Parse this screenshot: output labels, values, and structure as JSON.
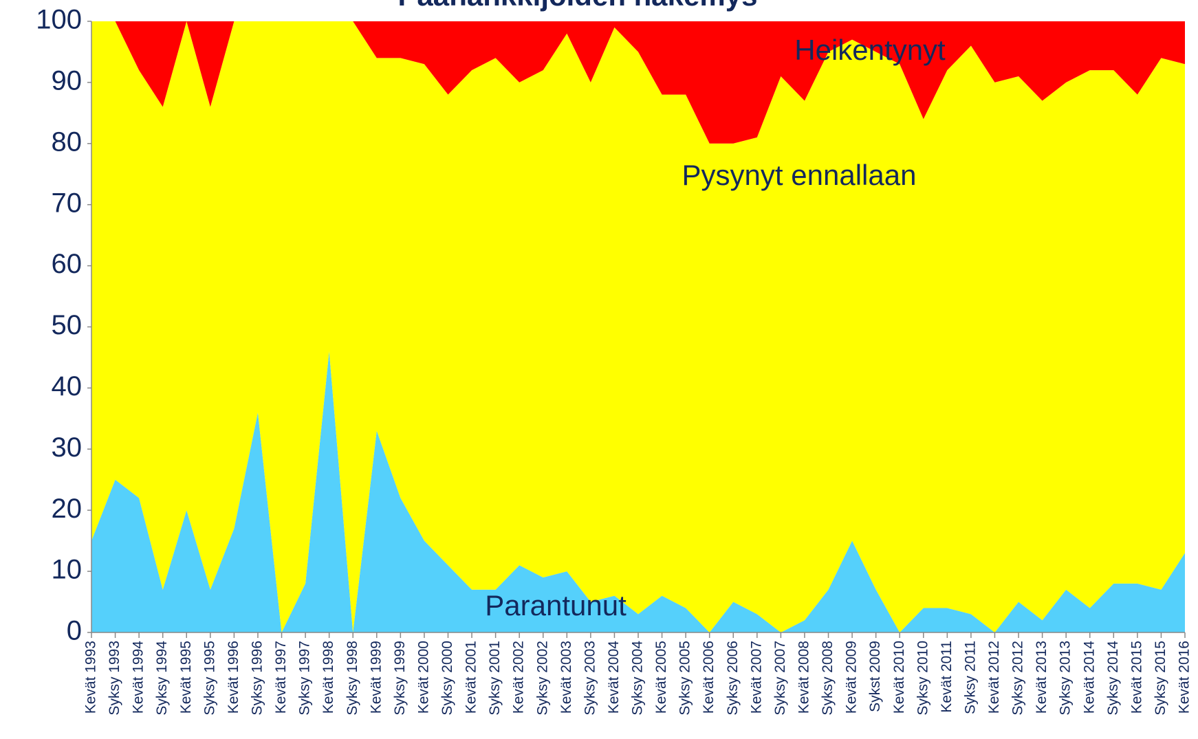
{
  "chart_data": {
    "type": "stacked_area",
    "title": "Päähankkijoiden näkemys",
    "categories": [
      "Kevät 1993",
      "Syksy 1993",
      "Kevät 1994",
      "Syksy 1994",
      "Kevät 1995",
      "Syksy 1995",
      "Kevät 1996",
      "Syksy 1996",
      "Kevät 1997",
      "Syksy 1997",
      "Kevät 1998",
      "Syksy 1998",
      "Kevät 1999",
      "Syksy 1999",
      "Kevät 2000",
      "Syksy 2000",
      "Kevät 2001",
      "Syksy 2001",
      "Kevät 2002",
      "Syksy 2002",
      "Kevät 2003",
      "Syksy 2003",
      "Kevät 2004",
      "Syksy 2004",
      "Kevät 2005",
      "Syksy 2005",
      "Kevät 2006",
      "Syksy 2006",
      "Kevät 2007",
      "Syksy 2007",
      "Kevät 2008",
      "Syksy 2008",
      "Kevät 2009",
      "Sykst 2009",
      "Kevät 2010",
      "Syksy 2010",
      "Kevät 2011",
      "Syksy 2011",
      "Kevät 2012",
      "Syksy 2012",
      "Kevät 2013",
      "Syksy 2013",
      "Kevät 2014",
      "Syksy 2014",
      "Kevät 2015",
      "Syksy 2015",
      "Kevät 2016"
    ],
    "series": [
      {
        "name": "Parantunut",
        "color": "#55d0fb",
        "values": [
          15,
          25,
          22,
          7,
          20,
          7,
          17,
          36,
          0,
          8,
          46,
          0,
          33,
          22,
          15,
          11,
          7,
          7,
          11,
          9,
          10,
          5,
          6,
          3,
          6,
          4,
          0,
          5,
          3,
          0,
          2,
          7,
          15,
          7,
          0,
          4,
          4,
          3,
          0,
          5,
          2,
          7,
          4,
          8,
          8,
          7,
          13
        ]
      },
      {
        "name": "Pysynyt ennallaan",
        "color": "#ffff00",
        "values": [
          85,
          75,
          70,
          79,
          80,
          79,
          83,
          64,
          100,
          92,
          54,
          100,
          61,
          72,
          78,
          77,
          85,
          87,
          79,
          83,
          88,
          85,
          93,
          92,
          82,
          84,
          80,
          75,
          78,
          91,
          85,
          88,
          82,
          88,
          93,
          80,
          88,
          93,
          90,
          86,
          85,
          83,
          88,
          84,
          80,
          87,
          80
        ]
      },
      {
        "name": "Heikentynyt",
        "color": "#ff0000",
        "values": [
          0,
          0,
          8,
          14,
          0,
          14,
          0,
          0,
          0,
          0,
          0,
          0,
          6,
          6,
          7,
          12,
          8,
          6,
          10,
          8,
          2,
          10,
          1,
          5,
          12,
          12,
          20,
          20,
          19,
          9,
          13,
          5,
          3,
          5,
          7,
          16,
          8,
          4,
          10,
          9,
          13,
          10,
          8,
          8,
          12,
          6,
          7
        ]
      }
    ],
    "ylim": [
      0,
      100
    ],
    "yticks": [
      0,
      10,
      20,
      30,
      40,
      50,
      60,
      70,
      80,
      90,
      100
    ],
    "grid": false
  }
}
